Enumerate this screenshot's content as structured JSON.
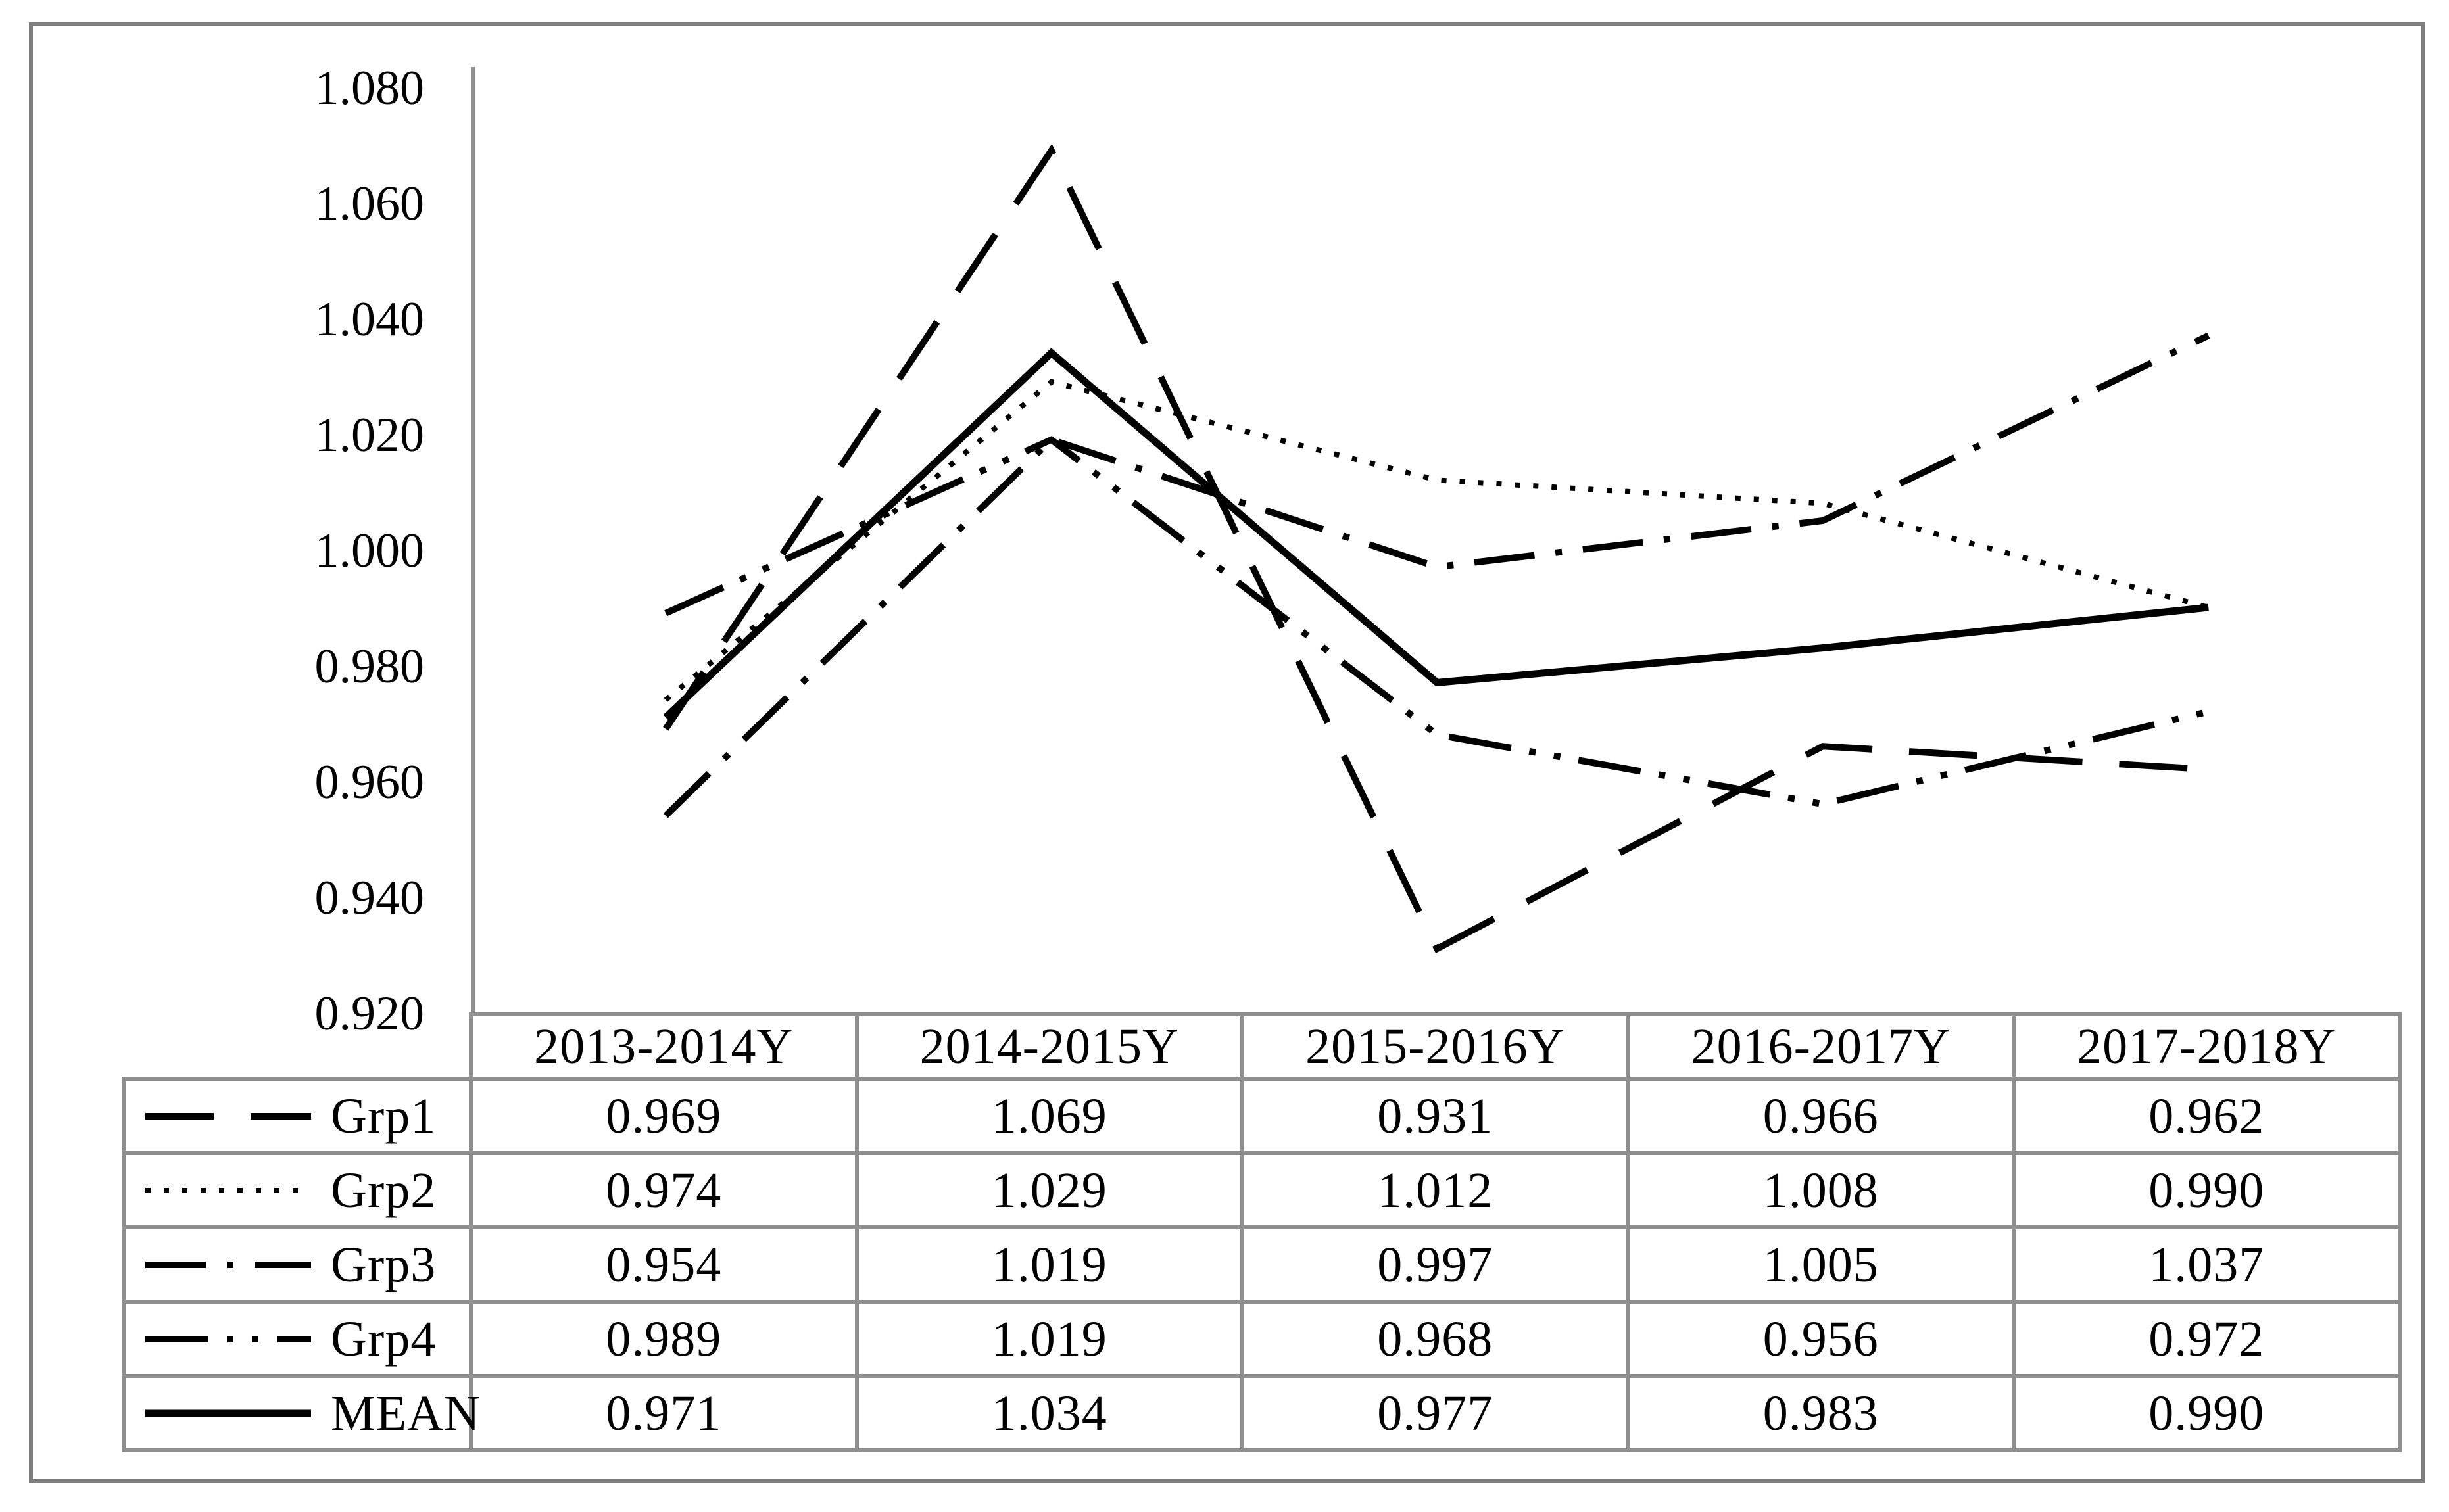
{
  "figure": {
    "background": "#ffffff",
    "frame_border_color": "#7f7f7f"
  },
  "chart_data": {
    "type": "line",
    "title": "",
    "xlabel": "",
    "ylabel": "",
    "categories": [
      "2013-2014Y",
      "2014-2015Y",
      "2015-2016Y",
      "2016-2017Y",
      "2017-2018Y"
    ],
    "series": [
      {
        "name": "Grp1",
        "line_style": "long-dash",
        "values": [
          0.969,
          1.069,
          0.931,
          0.966,
          0.962
        ]
      },
      {
        "name": "Grp2",
        "line_style": "dotted",
        "values": [
          0.974,
          1.029,
          1.012,
          1.008,
          0.99
        ]
      },
      {
        "name": "Grp3",
        "line_style": "dash-dot",
        "values": [
          0.954,
          1.019,
          0.997,
          1.005,
          1.037
        ]
      },
      {
        "name": "Grp4",
        "line_style": "dash-dot-dot",
        "values": [
          0.989,
          1.019,
          0.968,
          0.956,
          0.972
        ]
      },
      {
        "name": "MEAN",
        "line_style": "solid",
        "values": [
          0.971,
          1.034,
          0.977,
          0.983,
          0.99
        ]
      }
    ],
    "ylim": [
      0.92,
      1.08
    ],
    "ytick_step": 0.02,
    "ytick_labels": [
      "1.080",
      "1.060",
      "1.040",
      "1.020",
      "1.000",
      "0.980",
      "0.960",
      "0.940",
      "0.920"
    ],
    "grid": false,
    "legend_position": "table-left-column",
    "line_color": "#000000",
    "axis_color": "#8f8f8f"
  },
  "table": {
    "border_color": "#8f8f8f",
    "columns": [
      "2013-2014Y",
      "2014-2015Y",
      "2015-2016Y",
      "2016-2017Y",
      "2017-2018Y"
    ],
    "rows": [
      {
        "label": "Grp1",
        "values": [
          "0.969",
          "1.069",
          "0.931",
          "0.966",
          "0.962"
        ]
      },
      {
        "label": "Grp2",
        "values": [
          "0.974",
          "1.029",
          "1.012",
          "1.008",
          "0.990"
        ]
      },
      {
        "label": "Grp3",
        "values": [
          "0.954",
          "1.019",
          "0.997",
          "1.005",
          "1.037"
        ]
      },
      {
        "label": "Grp4",
        "values": [
          "0.989",
          "1.019",
          "0.968",
          "0.956",
          "0.972"
        ]
      },
      {
        "label": "MEAN",
        "values": [
          "0.971",
          "1.034",
          "0.977",
          "0.983",
          "0.990"
        ]
      }
    ]
  }
}
